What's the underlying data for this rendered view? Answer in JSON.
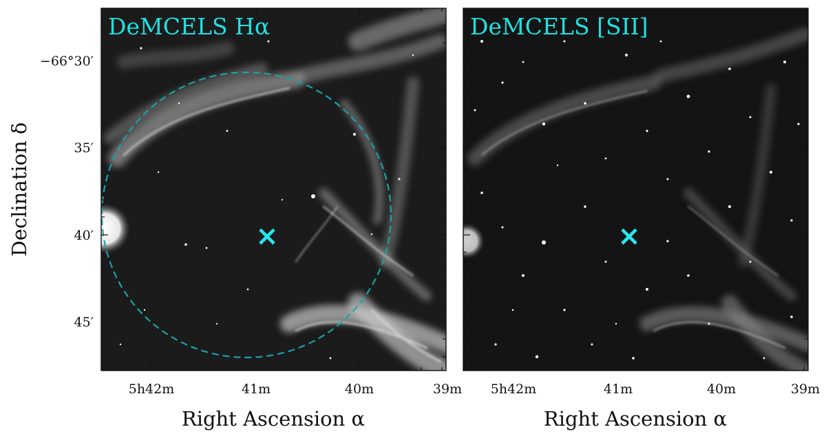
{
  "figure": {
    "panels": [
      {
        "id": "halpha",
        "label": "DeMCELS Hα",
        "label_color": "#22e0e0",
        "show_circle": true,
        "circle_color": "#1aa3a8",
        "marker": {
          "symbol": "×",
          "color": "#29e6ef"
        }
      },
      {
        "id": "sii",
        "label": "DeMCELS [SII]",
        "label_color": "#22e0e0",
        "show_circle": false,
        "marker": {
          "symbol": "×",
          "color": "#29e6ef"
        }
      }
    ],
    "x_axis": {
      "label": "Right Ascension α",
      "ticks": [
        {
          "label": "5h42m",
          "ra_min": 42
        },
        {
          "label": "41m",
          "ra_min": 41
        },
        {
          "label": "40m",
          "ra_min": 40
        },
        {
          "label": "39m",
          "ra_min": 39
        }
      ]
    },
    "y_axis": {
      "label": "Declination δ",
      "ticks": [
        {
          "label": "−66°30′",
          "dec_arcmin": 30
        },
        {
          "label": "35′",
          "dec_arcmin": 35
        },
        {
          "label": "40′",
          "dec_arcmin": 40
        },
        {
          "label": "45′",
          "dec_arcmin": 45
        }
      ]
    }
  }
}
